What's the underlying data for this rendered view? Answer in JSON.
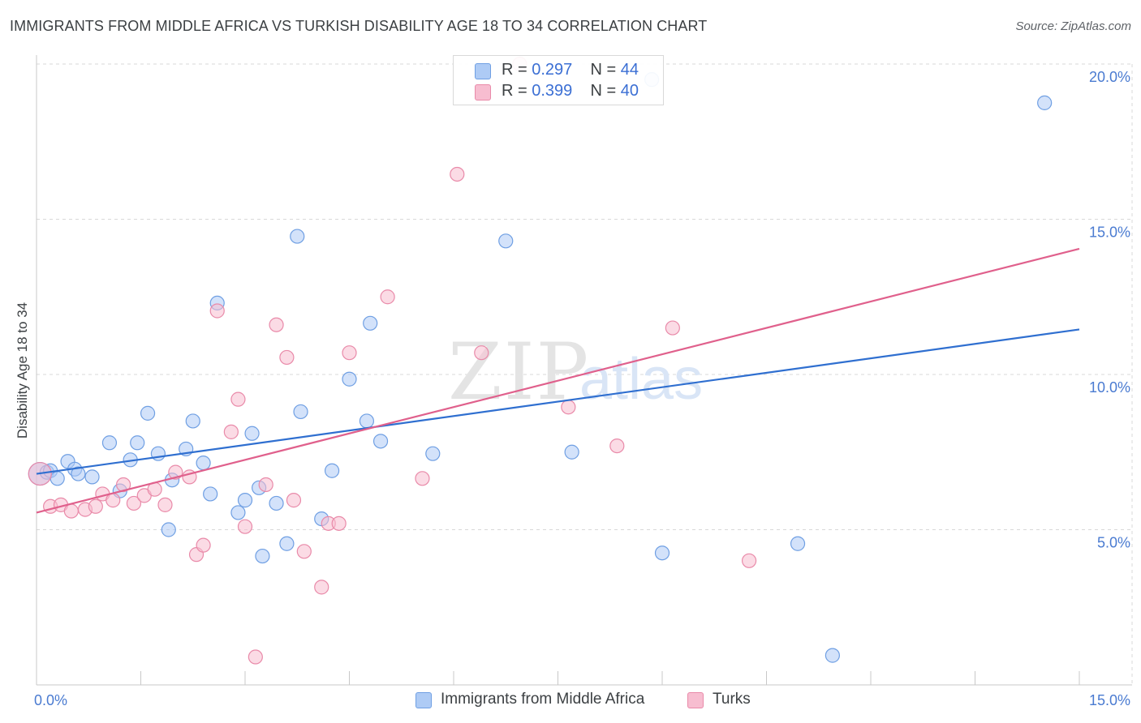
{
  "header": {
    "title": "IMMIGRANTS FROM MIDDLE AFRICA VS TURKISH DISABILITY AGE 18 TO 34 CORRELATION CHART",
    "source": "Source: ZipAtlas.com"
  },
  "watermark": {
    "zip": "ZIP",
    "atlas": "atlas"
  },
  "legend": {
    "rows": [
      {
        "r_label": "R = ",
        "r_value": "0.297",
        "n_label": "N = ",
        "n_value": "44"
      },
      {
        "r_label": "R = ",
        "r_value": "0.399",
        "n_label": "N = ",
        "n_value": "40"
      }
    ]
  },
  "bottom_legend": {
    "items": [
      {
        "label": "Immigrants from Middle Africa"
      },
      {
        "label": "Turks"
      }
    ]
  },
  "colors": {
    "blue_fill": "#aecbf5",
    "blue_stroke": "#6f9fe3",
    "blue_line": "#2f6fd0",
    "pink_fill": "#f7bdd0",
    "pink_stroke": "#e98aa9",
    "pink_line": "#e0608c",
    "grid": "#d8d8d8",
    "tick_text": "#4a7bd1"
  },
  "chart_data": {
    "type": "scatter",
    "title": "IMMIGRANTS FROM MIDDLE AFRICA VS TURKISH DISABILITY AGE 18 TO 34 CORRELATION CHART",
    "xlabel": "",
    "ylabel": "Disability Age 18 to 34",
    "xlim": [
      0,
      15
    ],
    "ylim": [
      0,
      20
    ],
    "x_tick_labels": [
      "0.0%",
      "15.0%"
    ],
    "y_ticks": [
      5,
      10,
      15,
      20
    ],
    "y_tick_labels": [
      "5.0%",
      "10.0%",
      "15.0%",
      "20.0%"
    ],
    "grid": true,
    "legend_position": "top-center",
    "series": [
      {
        "name": "Immigrants from Middle Africa",
        "r": 0.297,
        "n": 44,
        "trend": {
          "x": [
            0,
            15
          ],
          "y": [
            6.8,
            11.45
          ]
        },
        "points": [
          [
            0.05,
            6.8
          ],
          [
            0.15,
            6.85
          ],
          [
            0.2,
            6.9
          ],
          [
            0.3,
            6.65
          ],
          [
            0.45,
            7.2
          ],
          [
            0.55,
            6.95
          ],
          [
            0.6,
            6.8
          ],
          [
            0.8,
            6.7
          ],
          [
            1.05,
            7.8
          ],
          [
            1.2,
            6.25
          ],
          [
            1.35,
            7.25
          ],
          [
            1.45,
            7.8
          ],
          [
            1.6,
            8.75
          ],
          [
            1.75,
            7.45
          ],
          [
            1.9,
            5.0
          ],
          [
            1.95,
            6.6
          ],
          [
            2.15,
            7.6
          ],
          [
            2.25,
            8.5
          ],
          [
            2.4,
            7.15
          ],
          [
            2.5,
            6.15
          ],
          [
            2.6,
            12.3
          ],
          [
            2.9,
            5.55
          ],
          [
            3.0,
            5.95
          ],
          [
            3.1,
            8.1
          ],
          [
            3.2,
            6.35
          ],
          [
            3.25,
            4.15
          ],
          [
            3.45,
            5.85
          ],
          [
            3.6,
            4.55
          ],
          [
            3.75,
            14.45
          ],
          [
            3.8,
            8.8
          ],
          [
            4.1,
            5.35
          ],
          [
            4.25,
            6.9
          ],
          [
            4.5,
            9.85
          ],
          [
            4.75,
            8.5
          ],
          [
            4.8,
            11.65
          ],
          [
            4.95,
            7.85
          ],
          [
            5.7,
            7.45
          ],
          [
            6.75,
            14.3
          ],
          [
            7.7,
            7.5
          ],
          [
            8.85,
            19.5
          ],
          [
            9.0,
            4.25
          ],
          [
            10.95,
            4.55
          ],
          [
            11.45,
            0.95
          ],
          [
            14.5,
            18.75
          ]
        ]
      },
      {
        "name": "Turks",
        "r": 0.399,
        "n": 40,
        "trend": {
          "x": [
            0,
            15
          ],
          "y": [
            5.55,
            14.05
          ]
        },
        "points": [
          [
            0.05,
            6.8
          ],
          [
            0.2,
            5.75
          ],
          [
            0.35,
            5.8
          ],
          [
            0.5,
            5.6
          ],
          [
            0.7,
            5.65
          ],
          [
            0.85,
            5.75
          ],
          [
            0.95,
            6.15
          ],
          [
            1.1,
            5.95
          ],
          [
            1.25,
            6.45
          ],
          [
            1.4,
            5.85
          ],
          [
            1.55,
            6.1
          ],
          [
            1.7,
            6.3
          ],
          [
            1.85,
            5.8
          ],
          [
            2.0,
            6.85
          ],
          [
            2.2,
            6.7
          ],
          [
            2.3,
            4.2
          ],
          [
            2.4,
            4.5
          ],
          [
            2.6,
            12.05
          ],
          [
            2.8,
            8.15
          ],
          [
            2.9,
            9.2
          ],
          [
            3.0,
            5.1
          ],
          [
            3.15,
            0.9
          ],
          [
            3.3,
            6.45
          ],
          [
            3.45,
            11.6
          ],
          [
            3.6,
            10.55
          ],
          [
            3.7,
            5.95
          ],
          [
            3.85,
            4.3
          ],
          [
            4.1,
            3.15
          ],
          [
            4.2,
            5.2
          ],
          [
            4.35,
            5.2
          ],
          [
            4.5,
            10.7
          ],
          [
            5.05,
            12.5
          ],
          [
            5.55,
            6.65
          ],
          [
            6.05,
            16.45
          ],
          [
            6.4,
            10.7
          ],
          [
            6.95,
            20.0
          ],
          [
            7.65,
            8.95
          ],
          [
            8.35,
            7.7
          ],
          [
            9.15,
            11.5
          ],
          [
            10.25,
            4.0
          ]
        ]
      }
    ]
  }
}
